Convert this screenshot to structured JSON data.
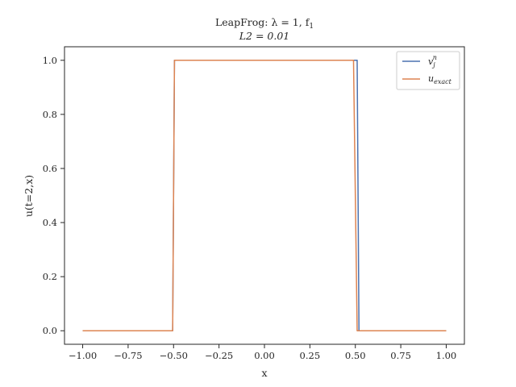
{
  "chart_data": {
    "type": "line",
    "title_line1": "LeapFrog: λ = 1, f",
    "title_line1_sub": "1",
    "title_line2": "L2 = 0.01",
    "xlabel": "x",
    "ylabel": "u(t=2,x)",
    "xlim": [
      -1.1,
      1.1
    ],
    "ylim": [
      -0.05,
      1.05
    ],
    "xticks": [
      -1.0,
      -0.75,
      -0.5,
      -0.25,
      0.0,
      0.25,
      0.5,
      0.75,
      1.0
    ],
    "xtick_labels": [
      "−1.00",
      "−0.75",
      "−0.50",
      "−0.25",
      "0.00",
      "0.25",
      "0.50",
      "0.75",
      "1.00"
    ],
    "yticks": [
      0.0,
      0.2,
      0.4,
      0.6,
      0.8,
      1.0
    ],
    "ytick_labels": [
      "0.0",
      "0.2",
      "0.4",
      "0.6",
      "0.8",
      "1.0"
    ],
    "legend_position": "top-right",
    "grid": false,
    "series": [
      {
        "name_base": "v",
        "name_sub": "j",
        "name_sup": "n",
        "color": "#4c72b0",
        "x": [
          -1.0,
          -0.505,
          -0.495,
          0.5,
          0.51,
          0.52,
          1.0
        ],
        "y": [
          0.0,
          0.0,
          1.0,
          1.0,
          1.0,
          0.0,
          0.0
        ]
      },
      {
        "name_base": "u",
        "name_sub": "exact",
        "color": "#dd8452",
        "x": [
          -1.0,
          -0.505,
          -0.495,
          0.49,
          0.51,
          1.0
        ],
        "y": [
          0.0,
          0.0,
          1.0,
          1.0,
          0.0,
          0.0
        ]
      }
    ]
  }
}
